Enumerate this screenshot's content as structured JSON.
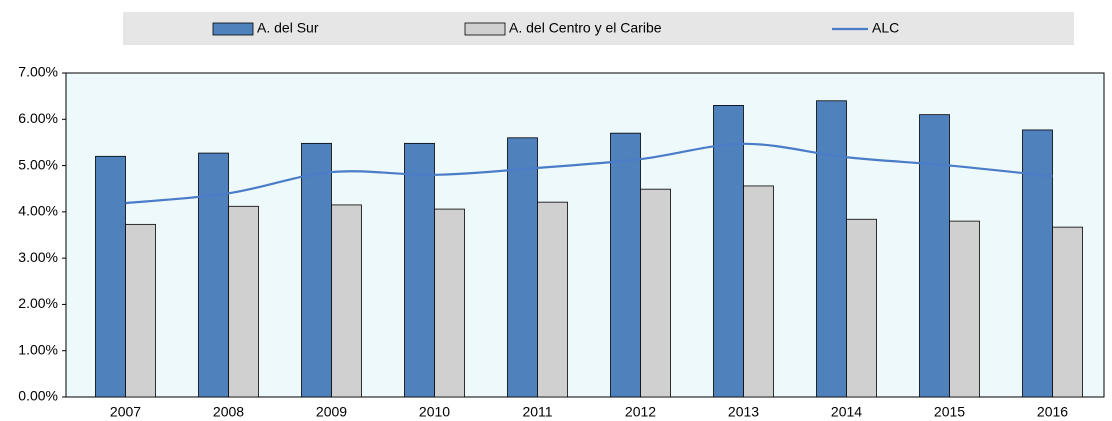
{
  "chart_data": {
    "type": "bar-line",
    "categories": [
      "2007",
      "2008",
      "2009",
      "2010",
      "2011",
      "2012",
      "2013",
      "2014",
      "2015",
      "2016"
    ],
    "series": [
      {
        "name": "A. del Sur",
        "type": "bar",
        "color": "#4f81bd",
        "values": [
          5.2,
          5.27,
          5.48,
          5.48,
          5.6,
          5.7,
          6.3,
          6.4,
          6.1,
          5.77
        ]
      },
      {
        "name": "A. del Centro y el Caribe",
        "type": "bar",
        "color": "#d0d0d0",
        "values": [
          3.73,
          4.12,
          4.15,
          4.06,
          4.21,
          4.49,
          4.56,
          3.84,
          3.8,
          3.67
        ]
      },
      {
        "name": "ALC",
        "type": "line",
        "color": "#4a7cc7",
        "values": [
          4.19,
          4.4,
          4.86,
          4.8,
          4.95,
          5.14,
          5.47,
          5.18,
          5.0,
          4.77
        ]
      }
    ],
    "ylim": [
      0,
      7
    ],
    "yticks": [
      {
        "value": 0,
        "label": "0.00%"
      },
      {
        "value": 1,
        "label": "1.00%"
      },
      {
        "value": 2,
        "label": "2.00%"
      },
      {
        "value": 3,
        "label": "3.00%"
      },
      {
        "value": 4,
        "label": "4.00%"
      },
      {
        "value": 5,
        "label": "5.00%"
      },
      {
        "value": 6,
        "label": "6.00%"
      },
      {
        "value": 7,
        "label": "7.00%"
      }
    ],
    "grid": false,
    "legend": "top"
  }
}
